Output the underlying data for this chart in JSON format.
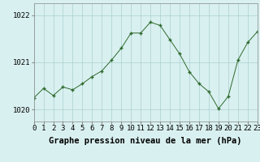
{
  "x": [
    0,
    1,
    2,
    3,
    4,
    5,
    6,
    7,
    8,
    9,
    10,
    11,
    12,
    13,
    14,
    15,
    16,
    17,
    18,
    19,
    20,
    21,
    22,
    23
  ],
  "y": [
    1020.25,
    1020.45,
    1020.3,
    1020.48,
    1020.42,
    1020.55,
    1020.7,
    1020.82,
    1021.05,
    1021.3,
    1021.62,
    1021.62,
    1021.85,
    1021.78,
    1021.48,
    1021.18,
    1020.8,
    1020.55,
    1020.38,
    1020.02,
    1020.28,
    1021.05,
    1021.42,
    1021.65
  ],
  "xlim": [
    0,
    23
  ],
  "ylim": [
    1019.75,
    1022.25
  ],
  "yticks": [
    1020,
    1021,
    1022
  ],
  "xticks": [
    0,
    1,
    2,
    3,
    4,
    5,
    6,
    7,
    8,
    9,
    10,
    11,
    12,
    13,
    14,
    15,
    16,
    17,
    18,
    19,
    20,
    21,
    22,
    23
  ],
  "line_color": "#2d6a2d",
  "marker": "+",
  "bg_color": "#d9f0f0",
  "grid_color": "#aacfcf",
  "xlabel": "Graphe pression niveau de la mer (hPa)",
  "xlabel_fontsize": 7.5,
  "tick_fontsize": 6.5,
  "ytick_fontsize": 6.5
}
